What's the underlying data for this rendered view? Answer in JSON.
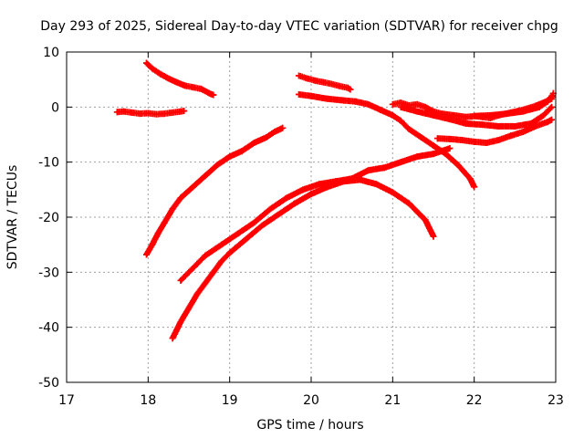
{
  "chart_data": {
    "type": "scatter",
    "title": "Day 293 of 2025, Sidereal Day-to-day VTEC variation (SDTVAR) for receiver chpg",
    "xlabel": "GPS time / hours",
    "ylabel": "SDTVAR / TECUs",
    "xlim": [
      17,
      23
    ],
    "ylim": [
      -50,
      10
    ],
    "x_ticks": [
      17,
      18,
      19,
      20,
      21,
      22,
      23
    ],
    "y_ticks": [
      -50,
      -40,
      -30,
      -20,
      -10,
      0,
      10
    ],
    "grid": true,
    "legend": "none",
    "marker": "plus",
    "series_color": "#ff0000",
    "series": [
      {
        "name": "track-1",
        "points": [
          [
            17.62,
            -0.9
          ],
          [
            17.7,
            -0.8
          ],
          [
            17.8,
            -1.0
          ],
          [
            17.9,
            -1.2
          ],
          [
            18.0,
            -1.1
          ],
          [
            18.1,
            -1.3
          ],
          [
            18.2,
            -1.2
          ],
          [
            18.3,
            -1.0
          ],
          [
            18.4,
            -0.8
          ],
          [
            18.44,
            -0.7
          ]
        ]
      },
      {
        "name": "track-2",
        "points": [
          [
            17.98,
            8.0
          ],
          [
            18.05,
            7.0
          ],
          [
            18.15,
            6.0
          ],
          [
            18.25,
            5.2
          ],
          [
            18.35,
            4.5
          ],
          [
            18.45,
            3.9
          ],
          [
            18.55,
            3.6
          ],
          [
            18.65,
            3.3
          ],
          [
            18.75,
            2.5
          ],
          [
            18.8,
            2.2
          ]
        ]
      },
      {
        "name": "track-3",
        "points": [
          [
            17.98,
            -26.8
          ],
          [
            18.05,
            -25.0
          ],
          [
            18.12,
            -23.0
          ],
          [
            18.2,
            -21.0
          ],
          [
            18.3,
            -18.5
          ],
          [
            18.4,
            -16.5
          ],
          [
            18.55,
            -14.5
          ],
          [
            18.7,
            -12.5
          ],
          [
            18.85,
            -10.5
          ],
          [
            19.0,
            -9.0
          ],
          [
            19.15,
            -8.0
          ],
          [
            19.3,
            -6.5
          ],
          [
            19.45,
            -5.5
          ],
          [
            19.55,
            -4.5
          ],
          [
            19.65,
            -3.8
          ]
        ]
      },
      {
        "name": "track-4",
        "points": [
          [
            18.3,
            -42.0
          ],
          [
            18.4,
            -39.0
          ],
          [
            18.5,
            -36.5
          ],
          [
            18.6,
            -34.0
          ],
          [
            18.7,
            -32.0
          ],
          [
            18.8,
            -30.0
          ],
          [
            18.9,
            -28.0
          ],
          [
            19.0,
            -26.5
          ],
          [
            19.2,
            -24.0
          ],
          [
            19.4,
            -21.5
          ],
          [
            19.6,
            -19.5
          ],
          [
            19.8,
            -17.5
          ],
          [
            20.0,
            -15.8
          ],
          [
            20.2,
            -14.5
          ],
          [
            20.4,
            -13.5
          ],
          [
            20.6,
            -13.2
          ],
          [
            20.8,
            -14.0
          ],
          [
            21.0,
            -15.5
          ],
          [
            21.2,
            -17.5
          ],
          [
            21.4,
            -20.5
          ],
          [
            21.5,
            -23.5
          ]
        ]
      },
      {
        "name": "track-5",
        "points": [
          [
            18.4,
            -31.5
          ],
          [
            18.5,
            -30.0
          ],
          [
            18.6,
            -28.5
          ],
          [
            18.7,
            -27.0
          ],
          [
            18.9,
            -25.0
          ],
          [
            19.1,
            -23.0
          ],
          [
            19.3,
            -21.0
          ],
          [
            19.5,
            -18.5
          ],
          [
            19.7,
            -16.5
          ],
          [
            19.9,
            -15.0
          ],
          [
            20.1,
            -14.0
          ],
          [
            20.3,
            -13.5
          ],
          [
            20.5,
            -13.0
          ],
          [
            20.7,
            -11.5
          ],
          [
            20.9,
            -11.0
          ],
          [
            21.1,
            -10.0
          ],
          [
            21.3,
            -9.0
          ],
          [
            21.5,
            -8.5
          ],
          [
            21.7,
            -7.5
          ]
        ]
      },
      {
        "name": "track-6",
        "points": [
          [
            19.85,
            5.7
          ],
          [
            19.95,
            5.2
          ],
          [
            20.05,
            4.8
          ],
          [
            20.15,
            4.5
          ],
          [
            20.25,
            4.2
          ],
          [
            20.35,
            3.8
          ],
          [
            20.45,
            3.5
          ],
          [
            20.48,
            3.2
          ]
        ]
      },
      {
        "name": "track-7",
        "points": [
          [
            19.85,
            2.3
          ],
          [
            20.0,
            2.0
          ],
          [
            20.2,
            1.5
          ],
          [
            20.4,
            1.2
          ],
          [
            20.55,
            1.0
          ],
          [
            20.7,
            0.5
          ],
          [
            20.85,
            -0.5
          ],
          [
            21.0,
            -1.5
          ],
          [
            21.1,
            -2.5
          ],
          [
            21.2,
            -4.0
          ],
          [
            21.35,
            -5.5
          ],
          [
            21.5,
            -7.0
          ],
          [
            21.65,
            -8.5
          ],
          [
            21.8,
            -10.5
          ],
          [
            21.95,
            -13.0
          ],
          [
            22.0,
            -14.5
          ]
        ]
      },
      {
        "name": "track-8",
        "points": [
          [
            21.0,
            0.5
          ],
          [
            21.1,
            0.8
          ],
          [
            21.2,
            0.3
          ],
          [
            21.3,
            0.5
          ],
          [
            21.4,
            0.0
          ],
          [
            21.5,
            -0.8
          ],
          [
            21.6,
            -1.2
          ],
          [
            21.75,
            -1.5
          ],
          [
            21.9,
            -1.8
          ],
          [
            22.05,
            -1.6
          ],
          [
            22.2,
            -1.5
          ],
          [
            22.4,
            -1.2
          ],
          [
            22.6,
            -0.8
          ],
          [
            22.8,
            0.0
          ],
          [
            22.9,
            1.0
          ],
          [
            22.95,
            2.0
          ]
        ]
      },
      {
        "name": "track-9",
        "points": [
          [
            21.1,
            0.0
          ],
          [
            21.3,
            -0.8
          ],
          [
            21.5,
            -1.5
          ],
          [
            21.7,
            -2.2
          ],
          [
            21.9,
            -3.0
          ],
          [
            22.1,
            -3.2
          ],
          [
            22.3,
            -3.5
          ],
          [
            22.5,
            -3.5
          ],
          [
            22.7,
            -3.0
          ],
          [
            22.85,
            -1.5
          ],
          [
            22.95,
            0.0
          ]
        ]
      },
      {
        "name": "track-10",
        "points": [
          [
            21.55,
            -5.7
          ],
          [
            21.7,
            -5.8
          ],
          [
            21.85,
            -6.0
          ],
          [
            22.0,
            -6.3
          ],
          [
            22.15,
            -6.5
          ],
          [
            22.3,
            -6.0
          ],
          [
            22.45,
            -5.2
          ],
          [
            22.6,
            -4.5
          ],
          [
            22.75,
            -3.5
          ],
          [
            22.9,
            -2.7
          ],
          [
            22.95,
            -2.3
          ]
        ]
      },
      {
        "name": "track-11",
        "points": [
          [
            22.0,
            -1.6
          ],
          [
            22.1,
            -1.8
          ],
          [
            22.2,
            -2.0
          ],
          [
            22.3,
            -1.5
          ],
          [
            22.45,
            -1.0
          ],
          [
            22.6,
            -0.5
          ],
          [
            22.75,
            0.2
          ],
          [
            22.85,
            0.8
          ],
          [
            22.95,
            1.5
          ],
          [
            22.97,
            2.5
          ]
        ]
      }
    ]
  }
}
